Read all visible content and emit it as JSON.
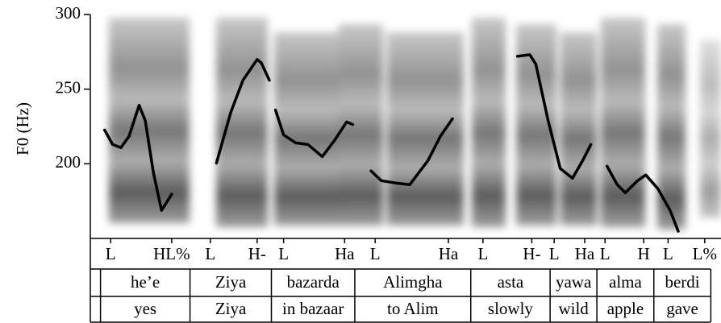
{
  "chart_data": {
    "type": "line",
    "y_label": "F0 (Hz)",
    "xlim": [
      0,
      3.1
    ],
    "ylim": [
      150,
      300
    ],
    "yticks": [
      200,
      250,
      300
    ],
    "x": [
      0.07,
      0.11,
      0.15,
      0.19,
      0.24,
      0.27,
      0.31,
      0.35,
      0.4,
      null,
      0.62,
      0.69,
      0.75,
      0.82,
      0.84,
      0.88,
      null,
      0.91,
      0.95,
      1.01,
      1.07,
      1.14,
      1.2,
      1.26,
      1.29,
      null,
      1.38,
      1.43,
      1.5,
      1.57,
      1.66,
      1.72,
      1.78,
      null,
      2.1,
      2.16,
      2.19,
      2.25,
      2.31,
      2.37,
      2.42,
      2.46,
      null,
      2.54,
      2.59,
      2.63,
      2.69,
      2.73,
      2.79,
      2.85,
      2.89
    ],
    "series": [
      {
        "color": "#000000",
        "values": [
          222.6,
          212.9,
          210.8,
          218.3,
          239.2,
          229,
          194.1,
          168.8,
          179.6,
          null,
          200.5,
          234.4,
          255.9,
          269.9,
          267.7,
          255.9,
          null,
          236,
          219.4,
          214,
          212.9,
          204.8,
          215.6,
          228,
          226.3,
          null,
          195.2,
          188.7,
          187.1,
          186,
          202.2,
          218.3,
          230.1,
          null,
          272,
          273.1,
          266.7,
          229,
          196.8,
          190.3,
          202.2,
          212.9,
          null,
          198.4,
          186,
          180.6,
          188.7,
          192.5,
          183.3,
          168.8,
          154.8
        ]
      }
    ],
    "tones": {
      "labels": [
        "L",
        "HL%",
        "L",
        "H-",
        "L",
        "Ha",
        "L",
        "Ha",
        "L",
        "H-",
        "L",
        "Ha",
        "L",
        "H",
        "L",
        "L%"
      ],
      "x": [
        0.1,
        0.4,
        0.59,
        0.82,
        0.95,
        1.25,
        1.4,
        1.76,
        1.93,
        2.17,
        2.28,
        2.43,
        2.53,
        2.72,
        2.84,
        3.02
      ]
    },
    "words": {
      "labels": [
        "he’e",
        "Ziya",
        "bazarda",
        "Alimgha",
        "asta",
        "yawa",
        "alma",
        "berdi"
      ],
      "glosses": [
        "yes",
        "Ziya",
        "in bazaar",
        "to Alim",
        "slowly",
        "wild",
        "apple",
        "gave"
      ],
      "bounds": [
        0.05,
        0.49,
        0.89,
        1.3,
        1.87,
        2.26,
        2.49,
        2.77,
        3.05
      ]
    }
  }
}
